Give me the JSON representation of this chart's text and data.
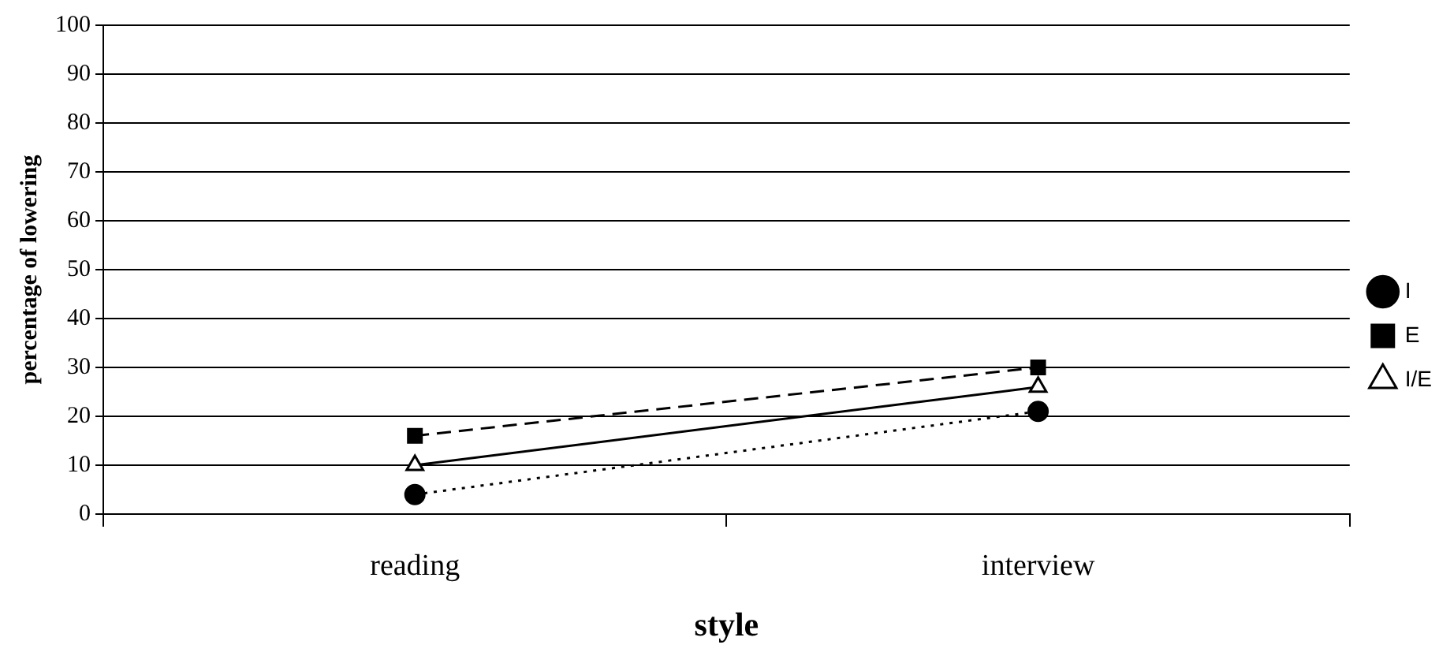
{
  "chart_data": {
    "type": "line",
    "xlabel": "style",
    "ylabel": "percentage of lowering",
    "categories": [
      "reading",
      "interview"
    ],
    "series": [
      {
        "name": "I",
        "color": "#000000",
        "values": [
          4,
          21
        ],
        "marker": "circle",
        "line_style": "dotted"
      },
      {
        "name": "E",
        "color": "#000000",
        "values": [
          16,
          30
        ],
        "marker": "square",
        "line_style": "dashed"
      },
      {
        "name": "I/E",
        "color": "#000000",
        "values": [
          10,
          26
        ],
        "marker": "triangle",
        "line_style": "solid"
      }
    ],
    "ylim": [
      0,
      100
    ],
    "yticks": [
      0,
      10,
      20,
      30,
      40,
      50,
      60,
      70,
      80,
      90,
      100
    ],
    "grid": "y",
    "legend": "right"
  }
}
